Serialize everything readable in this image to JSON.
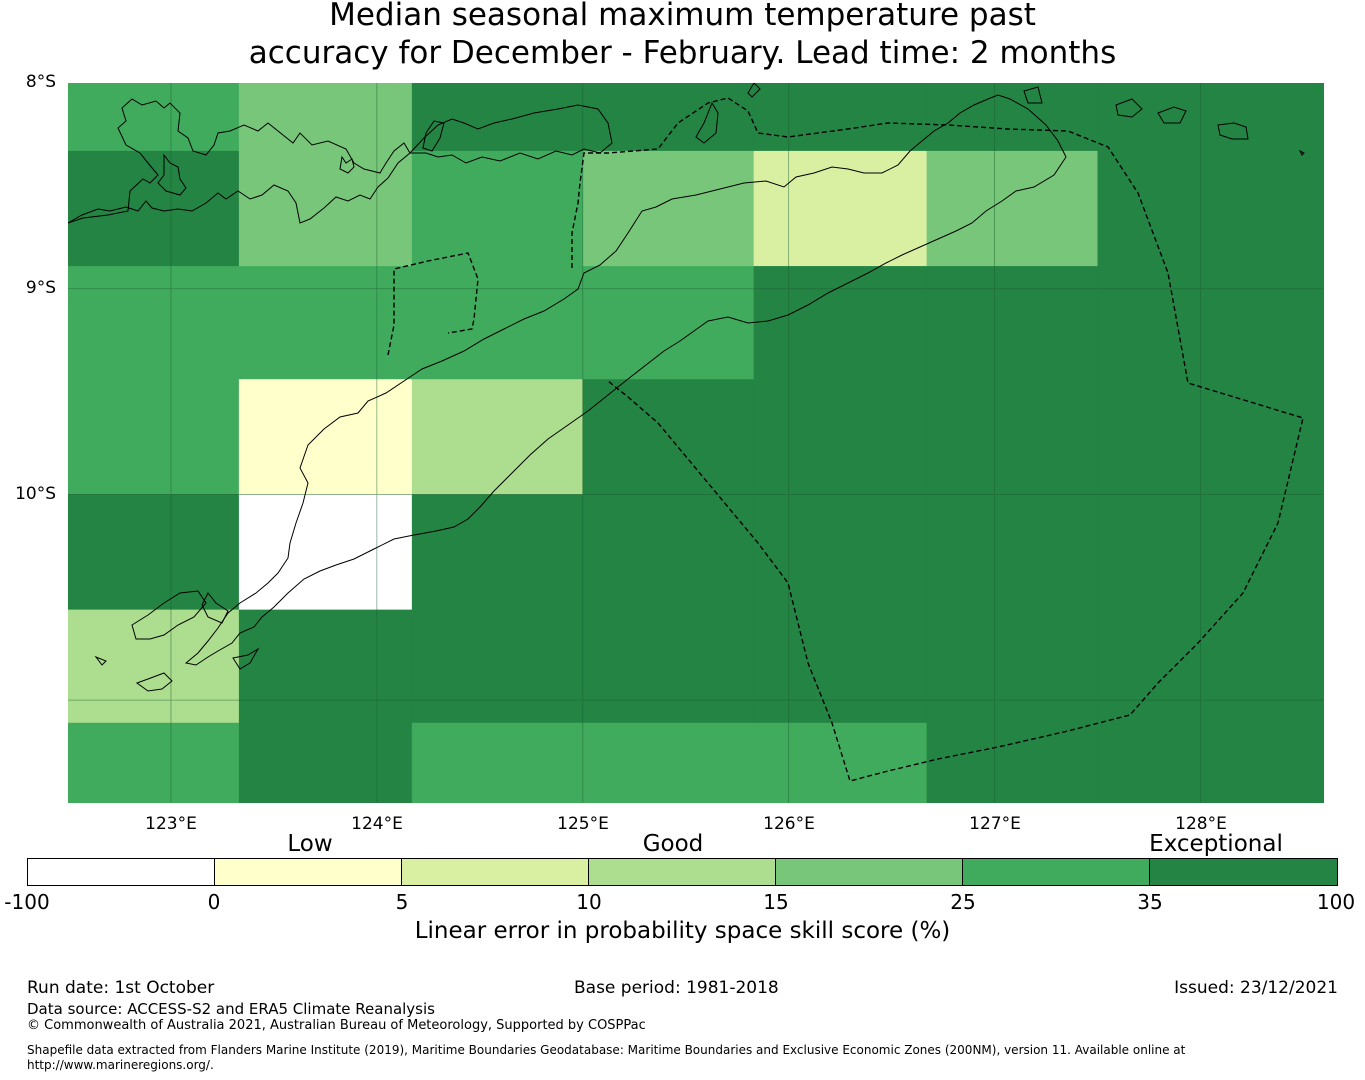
{
  "title": {
    "line1": "Median seasonal maximum temperature past",
    "line2": "accuracy for December - February. Lead time: 2 months"
  },
  "chart_data": {
    "type": "heatmap",
    "title": "Median seasonal maximum temperature past accuracy for December - February. Lead time: 2 months",
    "lat_range": [
      -11.5,
      -8.0
    ],
    "lon_range": [
      122.5,
      128.6
    ],
    "lat_ticks": [
      "8°S",
      "9°S",
      "10°S"
    ],
    "lon_ticks": [
      "123°E",
      "124°E",
      "125°E",
      "126°E",
      "127°E",
      "128°E"
    ],
    "grid": true,
    "cell_size_deg": 0.8333,
    "cells": [
      {
        "lon": [
          122.5,
          123.33
        ],
        "lat": [
          -8.33,
          -8.0
        ],
        "value": 30
      },
      {
        "lon": [
          122.5,
          123.33
        ],
        "lat": [
          -8.89,
          -8.33
        ],
        "value": 40
      },
      {
        "lon": [
          122.5,
          123.33
        ],
        "lat": [
          -9.44,
          -8.89
        ],
        "value": 30
      },
      {
        "lon": [
          122.5,
          123.33
        ],
        "lat": [
          -10.0,
          -9.44
        ],
        "value": 30
      },
      {
        "lon": [
          122.5,
          123.33
        ],
        "lat": [
          -10.56,
          -10.0
        ],
        "value": 40
      },
      {
        "lon": [
          122.5,
          123.33
        ],
        "lat": [
          -11.11,
          -10.56
        ],
        "value": 12
      },
      {
        "lon": [
          122.5,
          123.33
        ],
        "lat": [
          -11.5,
          -11.11
        ],
        "value": 30
      },
      {
        "lon": [
          123.33,
          124.17
        ],
        "lat": [
          -8.89,
          -8.0
        ],
        "value": 20
      },
      {
        "lon": [
          123.33,
          124.17
        ],
        "lat": [
          -9.44,
          -8.89
        ],
        "value": 30
      },
      {
        "lon": [
          123.33,
          124.17
        ],
        "lat": [
          -10.0,
          -9.44
        ],
        "value": 2
      },
      {
        "lon": [
          123.33,
          124.17
        ],
        "lat": [
          -10.56,
          -10.0
        ],
        "value": -50
      },
      {
        "lon": [
          123.33,
          124.17
        ],
        "lat": [
          -11.5,
          -10.56
        ],
        "value": 40
      },
      {
        "lon": [
          124.17,
          125.0
        ],
        "lat": [
          -8.33,
          -8.0
        ],
        "value": 40
      },
      {
        "lon": [
          124.17,
          125.0
        ],
        "lat": [
          -9.44,
          -8.33
        ],
        "value": 30
      },
      {
        "lon": [
          124.17,
          125.0
        ],
        "lat": [
          -10.0,
          -9.44
        ],
        "value": 12
      },
      {
        "lon": [
          124.17,
          125.0
        ],
        "lat": [
          -11.11,
          -10.0
        ],
        "value": 40
      },
      {
        "lon": [
          124.17,
          125.0
        ],
        "lat": [
          -11.5,
          -11.11
        ],
        "value": 30
      },
      {
        "lon": [
          125.0,
          125.83
        ],
        "lat": [
          -8.33,
          -8.0
        ],
        "value": 40
      },
      {
        "lon": [
          125.0,
          125.83
        ],
        "lat": [
          -8.89,
          -8.33
        ],
        "value": 20
      },
      {
        "lon": [
          125.0,
          125.83
        ],
        "lat": [
          -9.44,
          -8.89
        ],
        "value": 30
      },
      {
        "lon": [
          125.0,
          125.83
        ],
        "lat": [
          -11.11,
          -9.44
        ],
        "value": 40
      },
      {
        "lon": [
          125.0,
          125.83
        ],
        "lat": [
          -11.5,
          -11.11
        ],
        "value": 30
      },
      {
        "lon": [
          125.83,
          126.67
        ],
        "lat": [
          -8.33,
          -8.0
        ],
        "value": 40
      },
      {
        "lon": [
          125.83,
          126.67
        ],
        "lat": [
          -8.89,
          -8.33
        ],
        "value": 7
      },
      {
        "lon": [
          125.83,
          126.67
        ],
        "lat": [
          -11.11,
          -8.89
        ],
        "value": 40
      },
      {
        "lon": [
          125.83,
          126.67
        ],
        "lat": [
          -11.5,
          -11.11
        ],
        "value": 30
      },
      {
        "lon": [
          126.67,
          127.5
        ],
        "lat": [
          -8.33,
          -8.0
        ],
        "value": 40
      },
      {
        "lon": [
          126.67,
          127.5
        ],
        "lat": [
          -8.89,
          -8.33
        ],
        "value": 20
      },
      {
        "lon": [
          126.67,
          127.5
        ],
        "lat": [
          -11.5,
          -8.89
        ],
        "value": 40
      },
      {
        "lon": [
          127.5,
          128.6
        ],
        "lat": [
          -11.5,
          -8.0
        ],
        "value": 40
      }
    ]
  },
  "colorbar": {
    "categories": [
      "Low",
      "Good",
      "Exceptional"
    ],
    "ticks": [
      "-100",
      "0",
      "5",
      "10",
      "15",
      "25",
      "35",
      "100"
    ],
    "bins": [
      {
        "from": -100,
        "to": 0,
        "color": "#ffffff"
      },
      {
        "from": 0,
        "to": 5,
        "color": "#ffffcc"
      },
      {
        "from": 5,
        "to": 10,
        "color": "#d9f0a3"
      },
      {
        "from": 10,
        "to": 15,
        "color": "#addd8e"
      },
      {
        "from": 15,
        "to": 25,
        "color": "#78c679"
      },
      {
        "from": 25,
        "to": 35,
        "color": "#41ab5d"
      },
      {
        "from": 35,
        "to": 100,
        "color": "#238443"
      }
    ],
    "label": "Linear error in probability space skill score (%)"
  },
  "footer": {
    "run_date": "Run date: 1st October",
    "base_period": "Base period: 1981-2018",
    "issued": "Issued: 23/12/2021",
    "data_source": "Data source: ACCESS-S2 and ERA5 Climate Reanalysis",
    "copyright": "© Commonwealth of Australia 2021, Australian Bureau of Meteorology, Supported by COSPPac",
    "shapefile_line1": "Shapefile data extracted from Flanders Marine Institute (2019), Maritime Boundaries Geodatabase: Maritime Boundaries and Exclusive Economic Zones (200NM), version 11. Available online at",
    "shapefile_line2": "http://www.marineregions.org/."
  }
}
